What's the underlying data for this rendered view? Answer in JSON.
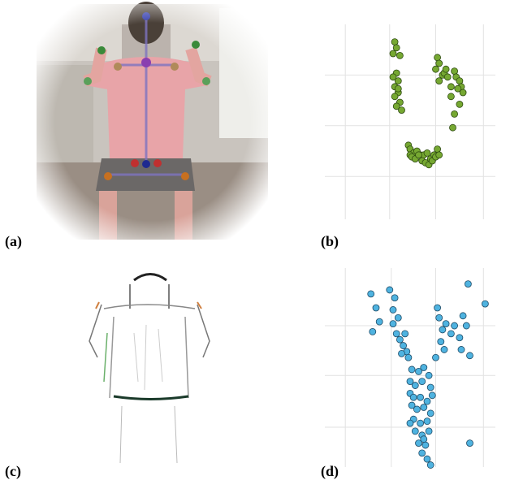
{
  "panel_labels": [
    "(a)",
    "(b)",
    "(c)",
    "(d)"
  ],
  "chart_data": [
    {
      "type": "scatter",
      "color": "#76a832",
      "xlim": [
        0,
        100
      ],
      "ylim": [
        0,
        100
      ],
      "grid": true,
      "x": [
        41,
        42,
        40,
        44,
        42,
        40,
        43,
        41,
        43,
        41,
        44,
        42,
        45,
        43,
        66,
        67,
        65,
        69,
        67,
        70,
        72,
        74,
        76,
        77,
        79,
        80,
        78,
        81,
        79,
        76,
        74,
        75,
        71,
        49,
        50,
        52,
        54,
        56,
        58,
        60,
        62,
        64,
        66,
        50,
        51,
        53,
        55,
        57,
        59,
        61,
        63,
        65,
        67
      ],
      "values": [
        91,
        88,
        85,
        84,
        75,
        73,
        71,
        68,
        65,
        63,
        60,
        58,
        56,
        67,
        83,
        80,
        77,
        74,
        71,
        75,
        73,
        68,
        76,
        73,
        71,
        68,
        67,
        65,
        59,
        54,
        63,
        47,
        77,
        38,
        36,
        34,
        35,
        33,
        33,
        34,
        31,
        33,
        36,
        33,
        32,
        31,
        33,
        30,
        29,
        28,
        30,
        32,
        33
      ]
    },
    {
      "type": "scatter",
      "color": "#4fb3e0",
      "xlim": [
        0,
        100
      ],
      "ylim": [
        0,
        100
      ],
      "grid": true,
      "x": [
        27,
        30,
        38,
        41,
        40,
        43,
        40,
        42,
        44,
        46,
        48,
        45,
        49,
        28,
        32,
        47,
        66,
        67,
        69,
        71,
        74,
        76,
        79,
        81,
        83,
        80,
        85,
        68,
        70,
        65,
        94,
        84,
        85,
        51,
        55,
        58,
        61,
        50,
        53,
        57,
        62,
        50,
        52,
        56,
        60,
        63,
        51,
        54,
        58,
        62,
        52,
        56,
        60,
        53,
        57,
        61,
        55,
        59,
        57,
        60,
        62,
        58,
        50
      ],
      "values": [
        87,
        80,
        89,
        85,
        79,
        75,
        72,
        67,
        64,
        61,
        58,
        57,
        55,
        68,
        73,
        67,
        80,
        75,
        69,
        72,
        67,
        71,
        65,
        76,
        71,
        59,
        56,
        63,
        59,
        55,
        82,
        92,
        12,
        49,
        48,
        50,
        46,
        43,
        41,
        43,
        40,
        37,
        35,
        35,
        33,
        36,
        31,
        29,
        30,
        27,
        24,
        22,
        23,
        18,
        16,
        18,
        12,
        11,
        7,
        4,
        1,
        14,
        22
      ]
    }
  ]
}
